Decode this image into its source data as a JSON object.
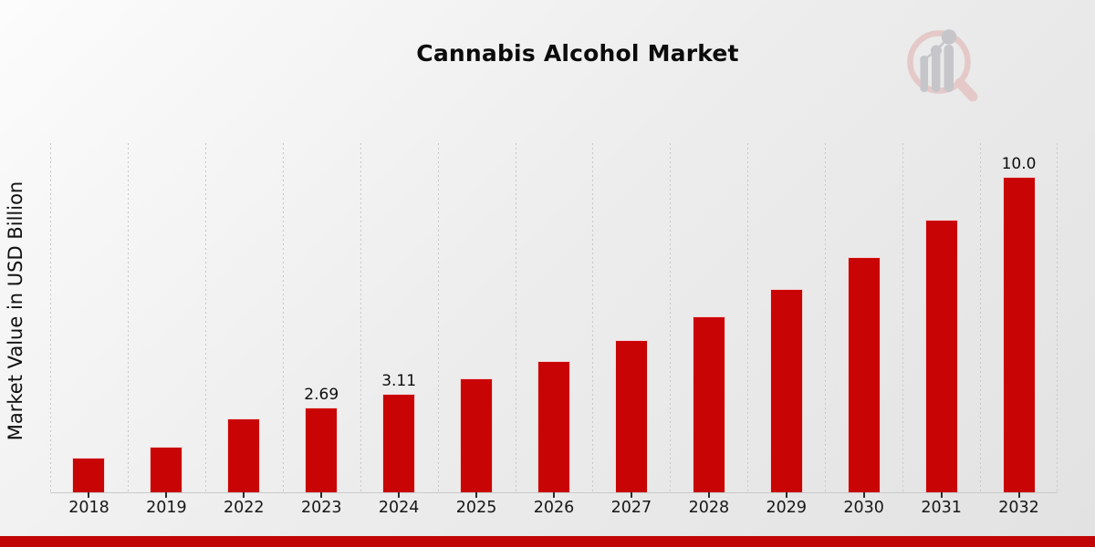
{
  "colors": {
    "bar": "#c90404",
    "footer_bar": "#c00606",
    "gridline": "#c8c8c8",
    "axis_line": "#c9c9c9",
    "tick": "#2b2b2b",
    "logo_pink": "#e5c9c9",
    "logo_gray": "#c6c6ca"
  },
  "icons": {
    "logo": "magnifier-bar-chart-logo"
  },
  "chart_data": {
    "type": "bar",
    "title": "Cannabis Alcohol Market",
    "subtitle": "",
    "xlabel": "",
    "ylabel": "Market Value in USD Billion",
    "categories": [
      "2018",
      "2019",
      "2022",
      "2023",
      "2024",
      "2025",
      "2026",
      "2027",
      "2028",
      "2029",
      "2030",
      "2031",
      "2032"
    ],
    "values": [
      1.1,
      1.45,
      2.33,
      2.69,
      3.11,
      3.6,
      4.16,
      4.82,
      5.57,
      6.45,
      7.46,
      8.64,
      10.0
    ],
    "bar_labels": [
      "",
      "",
      "",
      "2.69",
      "3.11",
      "",
      "",
      "",
      "",
      "",
      "",
      "",
      "10.0"
    ],
    "ylim": [
      0,
      11.07
    ],
    "grid": "vertical-dashed",
    "legend_position": "none",
    "bar_color": "#c90404"
  }
}
